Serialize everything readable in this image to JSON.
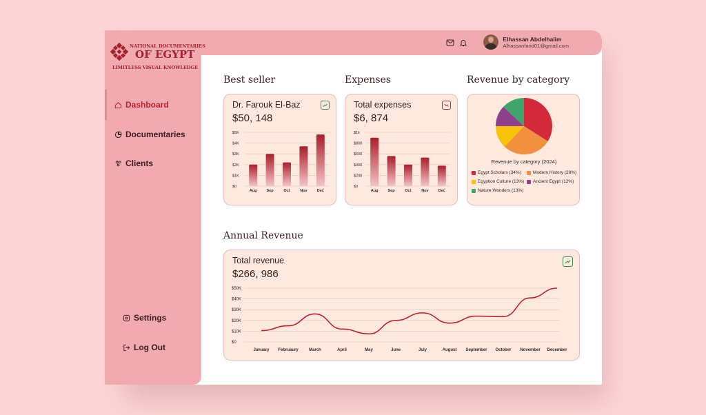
{
  "brand": {
    "line1": "NATIONAL DOCUMENTARIES",
    "line2": "OF EGYPT",
    "line3": "LIMITLESS VISUAL KNOWLEDGE"
  },
  "sidebar": {
    "items": [
      {
        "label": "Dashboard",
        "icon": "home-icon",
        "active": true
      },
      {
        "label": "Documentaries",
        "icon": "pie-icon",
        "active": false
      },
      {
        "label": "Clients",
        "icon": "users-icon",
        "active": false
      }
    ],
    "bottom": [
      {
        "label": "Settings",
        "icon": "gear-icon"
      },
      {
        "label": "Log Out",
        "icon": "logout-icon"
      }
    ]
  },
  "header": {
    "user_name": "Elhassan Abdelhalim",
    "user_email": "Alhassanfarid01@gmail.com",
    "icons": [
      "mail-icon",
      "bell-icon"
    ]
  },
  "sections": {
    "best_seller": "Best seller",
    "expenses": "Expenses",
    "revenue_by_category": "Revenue by category",
    "annual_revenue": "Annual Revenue"
  },
  "cards": {
    "best_seller": {
      "label": "Dr. Farouk El-Baz",
      "value": "$50, 148"
    },
    "expenses": {
      "label": "Total expenses",
      "value": "$6, 874"
    },
    "revenue": {
      "label": "Total revenue",
      "value": "$266, 986"
    }
  },
  "colors": {
    "accent": "#c0202e",
    "sidebar": "#f0aab0",
    "card_bg": "#fde9dd",
    "bar_top": "#a8202b",
    "bar_bottom": "#f6c3c6"
  },
  "chart_data": [
    {
      "id": "best_seller",
      "type": "bar",
      "categories": [
        "Aug",
        "Sep",
        "Oct",
        "Nov",
        "Dec"
      ],
      "values": [
        2000,
        3000,
        2200,
        3700,
        4800
      ],
      "yticks": [
        "$0",
        "$1K",
        "$2K",
        "$3K",
        "$4K",
        "$5K"
      ],
      "ylim": [
        0,
        5000
      ]
    },
    {
      "id": "expenses",
      "type": "bar",
      "categories": [
        "Aug",
        "Sep",
        "Oct",
        "Nov",
        "Dec"
      ],
      "values": [
        900,
        560,
        400,
        530,
        380
      ],
      "yticks": [
        "$0",
        "$200",
        "$400",
        "$600",
        "$800",
        "$1k"
      ],
      "ylim": [
        0,
        1000
      ]
    },
    {
      "id": "revenue_by_category",
      "type": "pie",
      "title": "Revenue by category  (2024)",
      "slices": [
        {
          "label": "Egypt Scholars (34%)",
          "value": 34,
          "color": "#d32a3b"
        },
        {
          "label": "Modern History (28%)",
          "value": 28,
          "color": "#f1913f"
        },
        {
          "label": "Egyption Culture (13%)",
          "value": 13,
          "color": "#f6c20a"
        },
        {
          "label": "Ancient Egypt (12%)",
          "value": 12,
          "color": "#8e3f8e"
        },
        {
          "label": "Nature Wonders (13%)",
          "value": 13,
          "color": "#3fa56a"
        }
      ]
    },
    {
      "id": "annual_revenue",
      "type": "line",
      "categories": [
        "January",
        "Februaury",
        "March",
        "April",
        "May",
        "June",
        "July",
        "August",
        "September",
        "October",
        "November",
        "December"
      ],
      "values": [
        10500,
        15000,
        26000,
        12000,
        7500,
        20000,
        27000,
        17500,
        24000,
        23500,
        41000,
        50000
      ],
      "yticks": [
        "$0",
        "$10K",
        "$20K",
        "$30K",
        "$40K",
        "$50K"
      ],
      "ylim": [
        0,
        50000
      ]
    }
  ]
}
